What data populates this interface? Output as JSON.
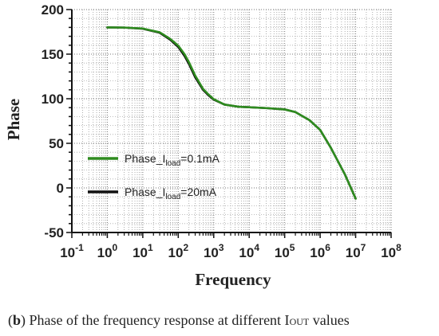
{
  "chart_data": {
    "type": "line",
    "xlabel": "Frequency",
    "ylabel": "Phase",
    "xscale": "log",
    "xlim": [
      0.1,
      100000000
    ],
    "ylim": [
      -50,
      200
    ],
    "grid": "dotted major and minor",
    "xticks": [
      {
        "mant": "10",
        "exp": "-1"
      },
      {
        "mant": "10",
        "exp": "0"
      },
      {
        "mant": "10",
        "exp": "1"
      },
      {
        "mant": "10",
        "exp": "2"
      },
      {
        "mant": "10",
        "exp": "3"
      },
      {
        "mant": "10",
        "exp": "4"
      },
      {
        "mant": "10",
        "exp": "5"
      },
      {
        "mant": "10",
        "exp": "6"
      },
      {
        "mant": "10",
        "exp": "7"
      },
      {
        "mant": "10",
        "exp": "8"
      }
    ],
    "yticks": [
      "-50",
      "0",
      "50",
      "100",
      "150",
      "200"
    ],
    "legend_position": "center-left",
    "series": [
      {
        "name_parts": [
          "Phase_I",
          "load",
          "=20mA"
        ],
        "color": "#111111",
        "x": [
          1,
          3,
          10,
          30,
          60,
          100,
          150,
          200,
          300,
          500,
          700,
          1000,
          2000,
          5000,
          10000,
          30000,
          100000,
          200000,
          500000,
          1000000,
          2000000,
          5000000,
          10000000
        ],
        "y": [
          180,
          179.8,
          178.5,
          174,
          166,
          158,
          148,
          139,
          124,
          110,
          104,
          99,
          93.5,
          91,
          90.5,
          89.5,
          88,
          85,
          76,
          65,
          45,
          15,
          -12
        ]
      },
      {
        "name_parts": [
          "Phase_I",
          "load",
          "=0.1mA"
        ],
        "color": "#2e8b1f",
        "x": [
          1,
          3,
          10,
          30,
          60,
          100,
          150,
          200,
          300,
          500,
          700,
          1000,
          2000,
          5000,
          10000,
          30000,
          100000,
          200000,
          500000,
          1000000,
          2000000,
          5000000,
          10000000
        ],
        "y": [
          180,
          179.8,
          178.7,
          174.5,
          167,
          159.5,
          150,
          141,
          126,
          111,
          105,
          99.5,
          93.5,
          91,
          90.5,
          89.5,
          88,
          85,
          76,
          65,
          45,
          15,
          -12
        ]
      }
    ]
  },
  "caption": {
    "label": "b",
    "text": " Phase of the frequency response at different I",
    "subscript": "OUT",
    "suffix": " values"
  }
}
